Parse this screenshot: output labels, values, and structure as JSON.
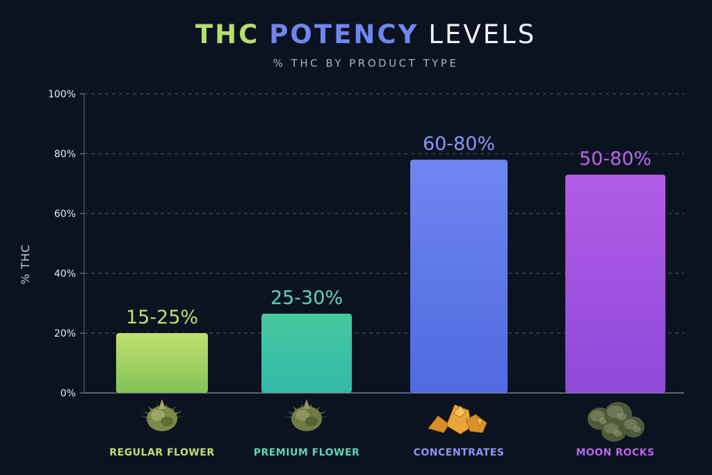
{
  "chart_data": {
    "type": "bar",
    "title": {
      "words": [
        {
          "text": "THC",
          "color": "#b7de6b"
        },
        {
          "text": "POTENCY",
          "color": "#6f86f0"
        },
        {
          "text": "LEVELS",
          "color": "#f1f3f8"
        }
      ]
    },
    "subtitle": "% THC BY PRODUCT TYPE",
    "ylabel": "% THC",
    "xlabel": "",
    "ylim": [
      0,
      100
    ],
    "yticks": [
      "0%",
      "20%",
      "40%",
      "60%",
      "80%",
      "100%"
    ],
    "grid": true,
    "categories": [
      "REGULAR FLOWER",
      "PREMIUM FLOWER",
      "CONCENTRATES",
      "MOON ROCKS"
    ],
    "values": [
      20,
      26.5,
      78,
      73
    ],
    "data_labels": [
      "15-25%",
      "25-30%",
      "60-80%",
      "50-80%"
    ],
    "colors": {
      "gradient_top": [
        "#c0e070",
        "#46c9a0",
        "#6f86f0",
        "#b25ce6"
      ],
      "gradient_bottom": [
        "#82c456",
        "#33b9a8",
        "#4f6ae0",
        "#8f49d8"
      ],
      "label": [
        "#c3df74",
        "#5fd6b6",
        "#8a97f2",
        "#b866ea"
      ]
    },
    "icons": [
      "cannabis-bud-icon",
      "cannabis-bud-icon",
      "wax-concentrate-icon",
      "moon-rocks-icon"
    ]
  }
}
